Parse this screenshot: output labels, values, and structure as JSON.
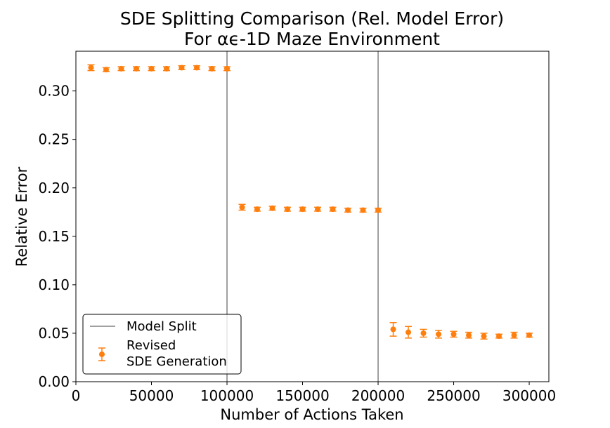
{
  "chart_data": {
    "type": "scatter",
    "title_lines": [
      "SDE Splitting Comparison (Rel. Model Error)",
      "For αϵ-1D Maze Environment"
    ],
    "xlabel": "Number of Actions Taken",
    "ylabel": "Relative Error",
    "xlim": [
      0,
      313000
    ],
    "ylim": [
      0,
      0.341
    ],
    "xticks": [
      0,
      50000,
      100000,
      150000,
      200000,
      250000,
      300000
    ],
    "xtick_labels": [
      "0",
      "50000",
      "100000",
      "150000",
      "200000",
      "250000",
      "300000"
    ],
    "yticks": [
      0.0,
      0.05,
      0.1,
      0.15,
      0.2,
      0.25,
      0.3
    ],
    "ytick_labels": [
      "0.00",
      "0.05",
      "0.10",
      "0.15",
      "0.20",
      "0.25",
      "0.30"
    ],
    "grid": false,
    "legend_position": "lower-left",
    "vlines": {
      "name": "Model Split",
      "color": "#808080",
      "x": [
        100000,
        200000
      ]
    },
    "series": [
      {
        "name": "Revised\nSDE Generation",
        "legend_lines": [
          "Revised",
          "SDE Generation"
        ],
        "color": "#ff7f0e",
        "x": [
          10000,
          20000,
          30000,
          40000,
          50000,
          60000,
          70000,
          80000,
          90000,
          100000,
          110000,
          120000,
          130000,
          140000,
          150000,
          160000,
          170000,
          180000,
          190000,
          200000,
          210000,
          220000,
          230000,
          240000,
          250000,
          260000,
          270000,
          280000,
          290000,
          300000
        ],
        "y": [
          0.324,
          0.322,
          0.323,
          0.323,
          0.323,
          0.323,
          0.324,
          0.324,
          0.323,
          0.323,
          0.18,
          0.178,
          0.179,
          0.178,
          0.178,
          0.178,
          0.178,
          0.177,
          0.177,
          0.177,
          0.054,
          0.051,
          0.05,
          0.049,
          0.049,
          0.048,
          0.047,
          0.047,
          0.048,
          0.048
        ],
        "err": [
          0.003,
          0.002,
          0.002,
          0.002,
          0.002,
          0.002,
          0.002,
          0.002,
          0.002,
          0.002,
          0.003,
          0.002,
          0.002,
          0.002,
          0.002,
          0.002,
          0.002,
          0.002,
          0.002,
          0.002,
          0.007,
          0.006,
          0.004,
          0.004,
          0.003,
          0.003,
          0.003,
          0.002,
          0.003,
          0.002
        ]
      }
    ]
  }
}
